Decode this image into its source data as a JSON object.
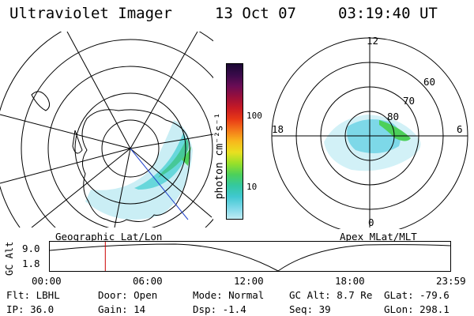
{
  "header": {
    "title": "Ultraviolet Imager",
    "date": "13 Oct 07",
    "time": "03:19:40 UT"
  },
  "colorbar": {
    "label": "photon cm⁻²s⁻¹",
    "ticks": [
      "100",
      "10"
    ],
    "colors": [
      "#1a0833",
      "#3a0a4a",
      "#6a0c55",
      "#9a0f3a",
      "#c81a24",
      "#e83a16",
      "#f4781a",
      "#f8b81c",
      "#e8e020",
      "#98e02a",
      "#4cd05a",
      "#34c8a0",
      "#40c8d0",
      "#7cd8e8",
      "#c0ecf4"
    ]
  },
  "panels": {
    "left_label": "Geographic Lat/Lon",
    "right_label": "Apex MLat/MLT",
    "mlt_labels": {
      "top": "12",
      "left": "18",
      "right": "6",
      "bottom": "0"
    },
    "lat_labels": [
      "60",
      "70",
      "80"
    ]
  },
  "timeline": {
    "ylabel": "GC Alt",
    "yticks": [
      "9.0",
      "1.8"
    ],
    "xticks": [
      "00:00",
      "06:00",
      "12:00",
      "18:00",
      "23:59"
    ],
    "marker_color": "#cc0000",
    "marker_time": "03:19:40"
  },
  "footer": {
    "flt": "Flt: LBHL",
    "ip": "IP: 36.0",
    "door": "Door: Open",
    "gain": "Gain: 14",
    "mode": "Mode: Normal",
    "dsp": "Dsp:   -1.4",
    "gcalt": "GC Alt: 8.7 Re",
    "seq": "Seq: 39",
    "glat": "GLat: -79.6",
    "glon": "GLon: 298.1"
  }
}
